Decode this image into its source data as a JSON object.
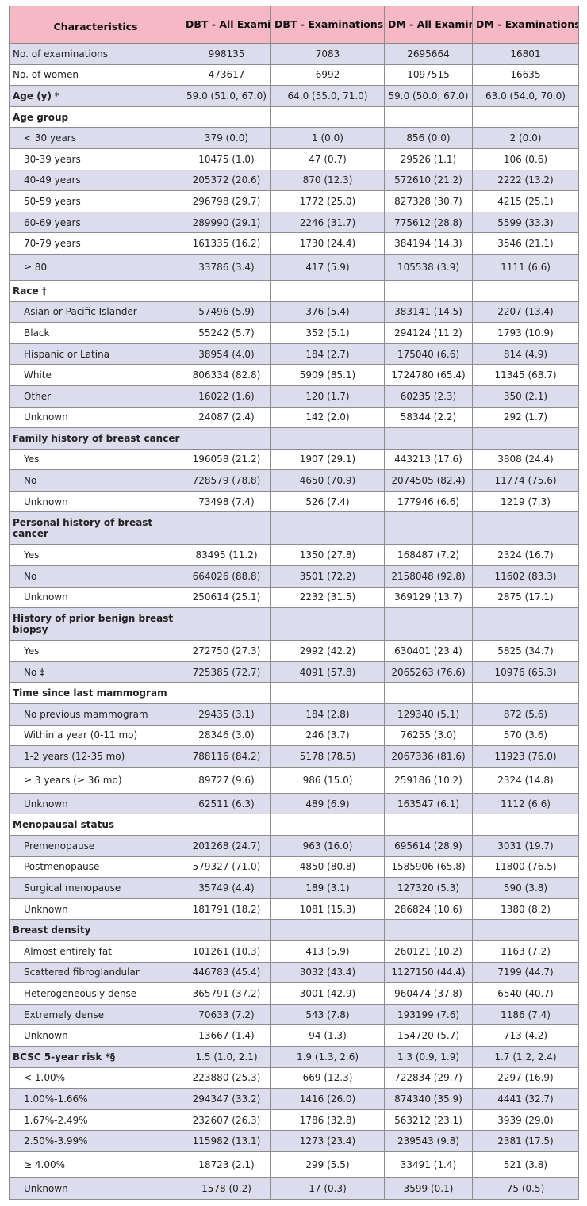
{
  "headers": [
    "Characteristics",
    "DBT - All Examinations",
    "DBT - Examinations with cancer",
    "DM - All Examinations",
    "DM - Examinations with cancer"
  ],
  "rows": [
    {
      "label": "No. of examinations",
      "vals": [
        "998135",
        "7083",
        "2695664",
        "16801"
      ],
      "kind": "plain"
    },
    {
      "label": "No. of women",
      "vals": [
        "473617",
        "6992",
        "1097515",
        "16635"
      ],
      "kind": "plain"
    },
    {
      "label": "Age (y)",
      "mark": " *",
      "vals": [
        "59.0 (51.0, 67.0)",
        "64.0 (55.0, 71.0)",
        "59.0 (50.0, 67.0)",
        "63.0 (54.0, 70.0)"
      ],
      "kind": "bold"
    },
    {
      "label": "Age group",
      "vals": [
        "",
        "",
        "",
        ""
      ],
      "kind": "section"
    },
    {
      "label": "< 30 years",
      "vals": [
        "379 (0.0)",
        "1 (0.0)",
        "856 (0.0)",
        "2 (0.0)"
      ],
      "kind": "sub"
    },
    {
      "label": "30-39 years",
      "vals": [
        "10475 (1.0)",
        "47 (0.7)",
        "29526 (1.1)",
        "106 (0.6)"
      ],
      "kind": "sub"
    },
    {
      "label": "40-49 years",
      "vals": [
        "205372 (20.6)",
        "870 (12.3)",
        "572610 (21.2)",
        "2222 (13.2)"
      ],
      "kind": "sub"
    },
    {
      "label": "50-59 years",
      "vals": [
        "296798 (29.7)",
        "1772 (25.0)",
        "827328 (30.7)",
        "4215 (25.1)"
      ],
      "kind": "sub"
    },
    {
      "label": "60-69 years",
      "vals": [
        "289990 (29.1)",
        "2246 (31.7)",
        "775612 (28.8)",
        "5599 (33.3)"
      ],
      "kind": "sub"
    },
    {
      "label": "70-79 years",
      "vals": [
        "161335 (16.2)",
        "1730 (24.4)",
        "384194 (14.3)",
        "3546 (21.1)"
      ],
      "kind": "sub"
    },
    {
      "label": "≥ 80",
      "vals": [
        "33786 (3.4)",
        "417 (5.9)",
        "105538 (3.9)",
        "1111 (6.6)"
      ],
      "kind": "sub-tall"
    },
    {
      "label": "Race †",
      "vals": [
        "",
        "",
        "",
        ""
      ],
      "kind": "section"
    },
    {
      "label": "Asian or Pacific Islander",
      "vals": [
        "57496 (5.9)",
        "376 (5.4)",
        "383141 (14.5)",
        "2207 (13.4)"
      ],
      "kind": "sub"
    },
    {
      "label": "Black",
      "vals": [
        "55242 (5.7)",
        "352 (5.1)",
        "294124 (11.2)",
        "1793 (10.9)"
      ],
      "kind": "sub"
    },
    {
      "label": "Hispanic or Latina",
      "vals": [
        "38954 (4.0)",
        "184 (2.7)",
        "175040 (6.6)",
        "814 (4.9)"
      ],
      "kind": "sub"
    },
    {
      "label": "White",
      "vals": [
        "806334 (82.8)",
        "5909 (85.1)",
        "1724780 (65.4)",
        "11345 (68.7)"
      ],
      "kind": "sub"
    },
    {
      "label": "Other",
      "vals": [
        "16022 (1.6)",
        "120 (1.7)",
        "60235 (2.3)",
        "350 (2.1)"
      ],
      "kind": "sub"
    },
    {
      "label": "Unknown",
      "vals": [
        "24087 (2.4)",
        "142 (2.0)",
        "58344 (2.2)",
        "292 (1.7)"
      ],
      "kind": "sub"
    },
    {
      "label": "Family history of breast cancer",
      "vals": [
        "",
        "",
        "",
        ""
      ],
      "kind": "section"
    },
    {
      "label": "Yes",
      "vals": [
        "196058 (21.2)",
        "1907 (29.1)",
        "443213 (17.6)",
        "3808 (24.4)"
      ],
      "kind": "sub"
    },
    {
      "label": "No",
      "vals": [
        "728579 (78.8)",
        "4650 (70.9)",
        "2074505 (82.4)",
        "11774 (75.6)"
      ],
      "kind": "sub"
    },
    {
      "label": "Unknown",
      "vals": [
        "73498 (7.4)",
        "526 (7.4)",
        "177946 (6.6)",
        "1219 (7.3)"
      ],
      "kind": "sub"
    },
    {
      "label": "Personal history of breast cancer",
      "vals": [
        "",
        "",
        "",
        ""
      ],
      "kind": "section-wrap"
    },
    {
      "label": "Yes",
      "vals": [
        "83495 (11.2)",
        "1350 (27.8)",
        "168487 (7.2)",
        "2324 (16.7)"
      ],
      "kind": "sub"
    },
    {
      "label": "No",
      "vals": [
        "664026 (88.8)",
        "3501 (72.2)",
        "2158048 (92.8)",
        "11602 (83.3)"
      ],
      "kind": "sub"
    },
    {
      "label": "Unknown",
      "vals": [
        "250614 (25.1)",
        "2232 (31.5)",
        "369129 (13.7)",
        "2875 (17.1)"
      ],
      "kind": "sub"
    },
    {
      "label": "History of prior benign breast biopsy",
      "vals": [
        "",
        "",
        "",
        ""
      ],
      "kind": "section-wrap"
    },
    {
      "label": "Yes",
      "vals": [
        "272750 (27.3)",
        "2992 (42.2)",
        "630401 (23.4)",
        "5825 (34.7)"
      ],
      "kind": "sub"
    },
    {
      "label": "No ‡",
      "vals": [
        "725385 (72.7)",
        "4091 (57.8)",
        "2065263 (76.6)",
        "10976 (65.3)"
      ],
      "kind": "sub"
    },
    {
      "label": "Time since last mammogram",
      "vals": [
        "",
        "",
        "",
        ""
      ],
      "kind": "section"
    },
    {
      "label": "No previous mammogram",
      "vals": [
        "29435 (3.1)",
        "184 (2.8)",
        "129340 (5.1)",
        "872 (5.6)"
      ],
      "kind": "sub"
    },
    {
      "label": "Within a year (0-11 mo)",
      "vals": [
        "28346 (3.0)",
        "246 (3.7)",
        "76255 (3.0)",
        "570 (3.6)"
      ],
      "kind": "sub"
    },
    {
      "label": "1-2 years (12-35 mo)",
      "vals": [
        "788116 (84.2)",
        "5178 (78.5)",
        "2067336 (81.6)",
        "11923 (76.0)"
      ],
      "kind": "sub"
    },
    {
      "label": "≥ 3 years (≥ 36 mo)",
      "vals": [
        "89727 (9.6)",
        "986 (15.0)",
        "259186 (10.2)",
        "2324 (14.8)"
      ],
      "kind": "sub-tall"
    },
    {
      "label": "Unknown",
      "vals": [
        "62511 (6.3)",
        "489 (6.9)",
        "163547 (6.1)",
        "1112 (6.6)"
      ],
      "kind": "sub"
    },
    {
      "label": "Menopausal status",
      "vals": [
        "",
        "",
        "",
        ""
      ],
      "kind": "section"
    },
    {
      "label": "Premenopause",
      "vals": [
        "201268 (24.7)",
        "963 (16.0)",
        "695614 (28.9)",
        "3031 (19.7)"
      ],
      "kind": "sub"
    },
    {
      "label": "Postmenopause",
      "vals": [
        "579327 (71.0)",
        "4850 (80.8)",
        "1585906 (65.8)",
        "11800 (76.5)"
      ],
      "kind": "sub"
    },
    {
      "label": "Surgical menopause",
      "vals": [
        "35749 (4.4)",
        "189 (3.1)",
        "127320 (5.3)",
        "590 (3.8)"
      ],
      "kind": "sub"
    },
    {
      "label": "Unknown",
      "vals": [
        "181791 (18.2)",
        "1081 (15.3)",
        "286824 (10.6)",
        "1380 (8.2)"
      ],
      "kind": "sub"
    },
    {
      "label": "Breast density",
      "vals": [
        "",
        "",
        "",
        ""
      ],
      "kind": "section"
    },
    {
      "label": "Almost entirely fat",
      "vals": [
        "101261 (10.3)",
        "413 (5.9)",
        "260121 (10.2)",
        "1163 (7.2)"
      ],
      "kind": "sub"
    },
    {
      "label": "Scattered fibroglandular",
      "vals": [
        "446783 (45.4)",
        "3032 (43.4)",
        "1127150 (44.4)",
        "7199 (44.7)"
      ],
      "kind": "sub"
    },
    {
      "label": "Heterogeneously dense",
      "vals": [
        "365791 (37.2)",
        "3001 (42.9)",
        "960474 (37.8)",
        "6540 (40.7)"
      ],
      "kind": "sub"
    },
    {
      "label": "Extremely dense",
      "vals": [
        "70633 (7.2)",
        "543 (7.8)",
        "193199 (7.6)",
        "1186 (7.4)"
      ],
      "kind": "sub"
    },
    {
      "label": "Unknown",
      "vals": [
        "13667 (1.4)",
        "94 (1.3)",
        "154720 (5.7)",
        "713 (4.2)"
      ],
      "kind": "sub"
    },
    {
      "label": "BCSC 5-year risk",
      "mark": " *§",
      "vals": [
        "1.5 (1.0, 2.1)",
        "1.9 (1.3, 2.6)",
        "1.3 (0.9, 1.9)",
        "1.7 (1.2, 2.4)"
      ],
      "kind": "bold"
    },
    {
      "label": "< 1.00%",
      "vals": [
        "223880 (25.3)",
        "669 (12.3)",
        "722834 (29.7)",
        "2297 (16.9)"
      ],
      "kind": "sub"
    },
    {
      "label": "1.00%-1.66%",
      "vals": [
        "294347 (33.2)",
        "1416 (26.0)",
        "874340 (35.9)",
        "4441 (32.7)"
      ],
      "kind": "sub"
    },
    {
      "label": "1.67%-2.49%",
      "vals": [
        "232607 (26.3)",
        "1786 (32.8)",
        "563212 (23.1)",
        "3939 (29.0)"
      ],
      "kind": "sub"
    },
    {
      "label": "2.50%-3.99%",
      "vals": [
        "115982 (13.1)",
        "1273 (23.4)",
        "239543 (9.8)",
        "2381 (17.5)"
      ],
      "kind": "sub"
    },
    {
      "label": "≥ 4.00%",
      "vals": [
        "18723 (2.1)",
        "299 (5.5)",
        "33491 (1.4)",
        "521 (3.8)"
      ],
      "kind": "sub-tall"
    },
    {
      "label": "Unknown",
      "vals": [
        "1578 (0.2)",
        "17 (0.3)",
        "3599 (0.1)",
        "75 (0.5)"
      ],
      "kind": "sub"
    }
  ]
}
